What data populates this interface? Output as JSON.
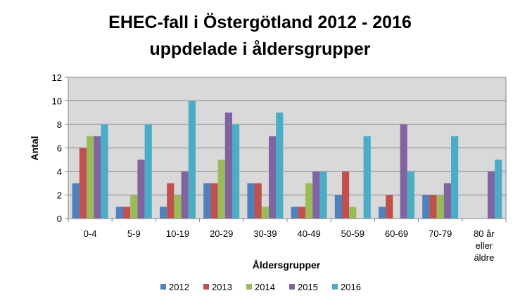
{
  "chart_data": {
    "type": "bar",
    "title": [
      "EHEC-fall i Östergötland 2012 - 2016",
      "uppdelade i åldersgrupper"
    ],
    "xlabel": "Åldersgrupper",
    "ylabel": "Antal",
    "ylim": [
      0,
      12
    ],
    "yticks": [
      0,
      2,
      4,
      6,
      8,
      10,
      12
    ],
    "grid": true,
    "legend_position": "bottom",
    "categories": [
      [
        "0-4"
      ],
      [
        "5-9"
      ],
      [
        "10-19"
      ],
      [
        "20-29"
      ],
      [
        "30-39"
      ],
      [
        "40-49"
      ],
      [
        "50-59"
      ],
      [
        "60-69"
      ],
      [
        "70-79"
      ],
      [
        "80 år",
        "eller",
        "äldre"
      ]
    ],
    "series": [
      {
        "name": "2012",
        "color": "#4F81BD",
        "values": [
          3,
          1,
          1,
          3,
          3,
          1,
          2,
          1,
          2,
          0
        ]
      },
      {
        "name": "2013",
        "color": "#C0504D",
        "values": [
          6,
          1,
          3,
          3,
          3,
          1,
          4,
          2,
          2,
          0
        ]
      },
      {
        "name": "2014",
        "color": "#9BBB59",
        "values": [
          7,
          2,
          2,
          5,
          1,
          3,
          1,
          0,
          2,
          0
        ]
      },
      {
        "name": "2015",
        "color": "#8064A2",
        "values": [
          7,
          5,
          4,
          9,
          7,
          4,
          0,
          8,
          3,
          4
        ]
      },
      {
        "name": "2016",
        "color": "#4BACC6",
        "values": [
          8,
          8,
          10,
          8,
          9,
          4,
          7,
          4,
          7,
          5
        ]
      }
    ],
    "plot_background": "#D9D9D9"
  }
}
